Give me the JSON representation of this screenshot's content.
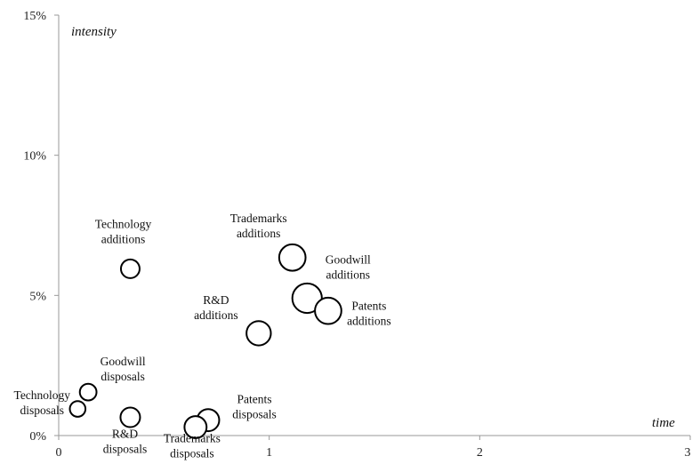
{
  "chart_data": {
    "type": "bubble",
    "xlabel": "time",
    "ylabel": "intensity",
    "xlim": [
      0,
      3
    ],
    "ylim": [
      0,
      0.15
    ],
    "x_ticks": [
      {
        "value": 0,
        "label": "0"
      },
      {
        "value": 1,
        "label": "1"
      },
      {
        "value": 2,
        "label": "2"
      },
      {
        "value": 3,
        "label": "3"
      }
    ],
    "y_ticks": [
      {
        "value": 0,
        "label": "0%"
      },
      {
        "value": 0.05,
        "label": "5%"
      },
      {
        "value": 0.1,
        "label": "10%"
      },
      {
        "value": 0.15,
        "label": "15%"
      }
    ],
    "points": [
      {
        "label": [
          "Technology",
          "additions"
        ],
        "x": 0.34,
        "y": 0.0595,
        "size": 1.0
      },
      {
        "label": [
          "Trademarks",
          "additions"
        ],
        "x": 1.11,
        "y": 0.0635,
        "size": 2.0
      },
      {
        "label": [
          "Goodwill",
          "additions"
        ],
        "x": 1.18,
        "y": 0.049,
        "size": 2.5
      },
      {
        "label": [
          "Patents",
          "additions"
        ],
        "x": 1.28,
        "y": 0.0445,
        "size": 2.0
      },
      {
        "label": [
          "R&D",
          "additions"
        ],
        "x": 0.95,
        "y": 0.0365,
        "size": 1.7
      },
      {
        "label": [
          "Goodwill",
          "disposals"
        ],
        "x": 0.14,
        "y": 0.0155,
        "size": 0.8
      },
      {
        "label": [
          "Technology",
          "disposals"
        ],
        "x": 0.09,
        "y": 0.0095,
        "size": 0.7
      },
      {
        "label": [
          "R&D",
          "disposals"
        ],
        "x": 0.34,
        "y": 0.0065,
        "size": 1.1
      },
      {
        "label": [
          "Patents",
          "disposals"
        ],
        "x": 0.71,
        "y": 0.0055,
        "size": 1.4
      },
      {
        "label": [
          "Trademarks",
          "disposals"
        ],
        "x": 0.65,
        "y": 0.003,
        "size": 1.4
      }
    ]
  }
}
